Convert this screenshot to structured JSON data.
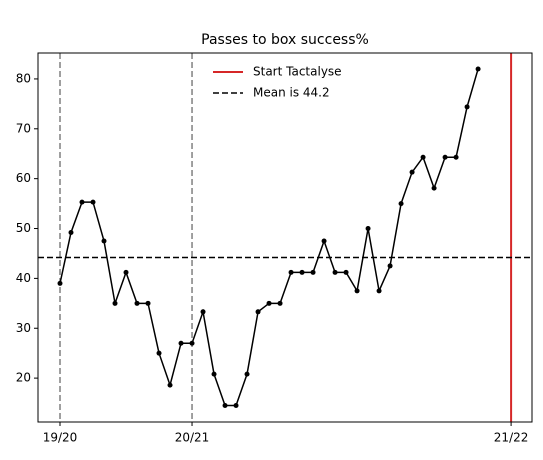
{
  "chart_data": {
    "type": "line",
    "title": "Passes to box success%",
    "x": [
      0,
      1,
      2,
      3,
      4,
      5,
      6,
      7,
      8,
      9,
      10,
      11,
      12,
      13,
      14,
      15,
      16,
      17,
      18,
      19,
      20,
      21,
      22,
      23,
      24,
      25,
      26,
      27,
      28,
      29,
      30,
      31,
      32,
      33,
      34,
      35,
      36,
      37,
      38
    ],
    "series": [
      {
        "name": "Passes to box success%",
        "color": "#000000",
        "values": [
          39,
          49.2,
          55.3,
          55.3,
          47.5,
          35,
          41.2,
          35,
          35,
          25,
          18.6,
          27,
          27,
          33.3,
          20.8,
          14.5,
          14.5,
          20.8,
          33.3,
          35,
          35,
          41.2,
          41.2,
          41.2,
          47.5,
          41.2,
          41.2,
          37.5,
          50,
          37.5,
          42.5,
          55,
          61.3,
          64.3,
          58.1,
          64.3,
          64.3,
          74.4,
          82
        ]
      }
    ],
    "xlim": [
      -2,
      42.9
    ],
    "xticks": [
      {
        "value": 0,
        "label": "19/20"
      },
      {
        "value": 12,
        "label": "20/21"
      },
      {
        "value": 41,
        "label": "21/22"
      }
    ],
    "ylim": [
      11.2,
      85.2
    ],
    "yticks": [
      20,
      30,
      40,
      50,
      60,
      70,
      80
    ],
    "season_lines": [
      0,
      12
    ],
    "season_line_color": "#808080",
    "start_line": {
      "label": "Start Tactalyse",
      "x": 41,
      "color": "#d62728"
    },
    "mean_line": {
      "label": "Mean is 44.2",
      "value": 44.2,
      "color": "#000000"
    },
    "legend": "upper center"
  }
}
